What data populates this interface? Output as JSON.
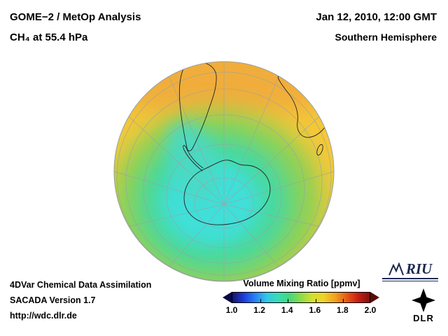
{
  "header": {
    "title_line1": "GOME−2 / MetOp Analysis",
    "title_line2": "CH₄ at 55.4 hPa",
    "date": "Jan 12, 2010, 12:00 GMT",
    "hemisphere": "Southern Hemisphere"
  },
  "footer": {
    "line1": "4DVar Chemical Data Assimilation",
    "line2": "SACADA Version 1.7",
    "line3": "http://wdc.dlr.de"
  },
  "colorbar": {
    "title": "Volume Mixing Ratio [ppmv]",
    "ticks": [
      "1.0",
      "1.2",
      "1.4",
      "1.6",
      "1.8",
      "2.0"
    ],
    "stops": [
      "#14146e",
      "#1e3cdc",
      "#2882f5",
      "#32c8e6",
      "#37dcb4",
      "#46d87d",
      "#8edc46",
      "#d2e032",
      "#f0d228",
      "#f0a01e",
      "#e65a14",
      "#c81e14",
      "#821010"
    ],
    "left_arrow_color": "#0a0a46",
    "right_arrow_color": "#5a0808"
  },
  "logos": {
    "riu_label": "RIU",
    "dlr_label": "DLR"
  },
  "chart_data": {
    "type": "heatmap",
    "title": "GOME−2 / MetOp Analysis, CH₄ at 55.4 hPa",
    "datetime": "Jan 12, 2010, 12:00 GMT",
    "region": "Southern Hemisphere",
    "projection": "polar orthographic view of the southern hemisphere with graticule and coastlines",
    "quantity": "CH₄ volume mixing ratio",
    "units": "ppmv",
    "colorbar_range": [
      1.0,
      2.0
    ],
    "colorbar_ticks": [
      1.0,
      1.2,
      1.4,
      1.6,
      1.8,
      2.0
    ],
    "field_values_ppmv": {
      "low_latitude_rim": 1.65,
      "mid_latitude_belt": 1.6,
      "subpolar_green_ring": 1.5,
      "polar_vortex_over_antarctica": 1.4,
      "vortex_core_minimum": 1.3
    },
    "palette": {
      "base_yellow": "#f5c838",
      "top_orange_band": "#efa53c",
      "outer_green": "#8ed155",
      "inner_green": "#46d9a2",
      "vortex_cyan": "#40dfd8",
      "tongue_cyan": "#4bd9c4",
      "grid": "#98a4a4",
      "coast": "#222222"
    }
  }
}
